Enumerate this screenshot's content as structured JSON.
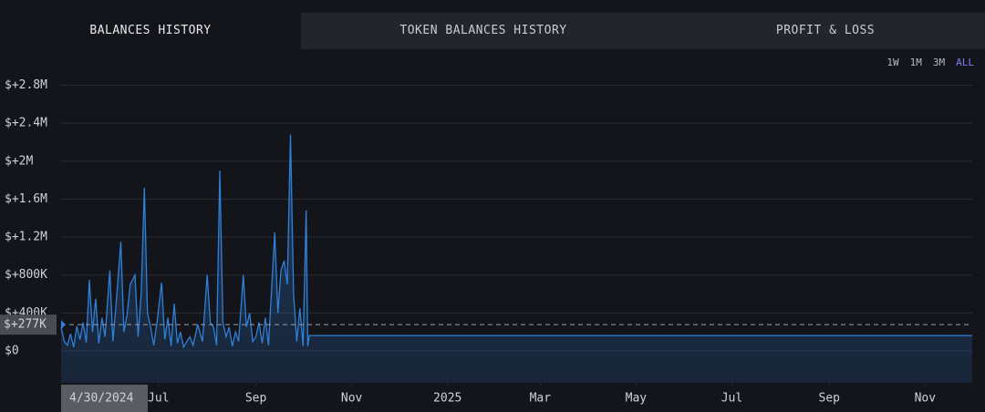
{
  "tabs": [
    {
      "label": "BALANCES HISTORY",
      "active": true
    },
    {
      "label": "TOKEN BALANCES HISTORY",
      "active": false
    },
    {
      "label": "PROFIT & LOSS",
      "active": false
    }
  ],
  "ranges": [
    {
      "label": "1W",
      "active": false
    },
    {
      "label": "1M",
      "active": false
    },
    {
      "label": "3M",
      "active": false
    },
    {
      "label": "ALL",
      "active": true
    }
  ],
  "chart_data": {
    "type": "area",
    "color": "#2f80d8",
    "grid": true,
    "x": [
      "2024-04-30",
      "2024-05-02",
      "2024-05-04",
      "2024-05-06",
      "2024-05-08",
      "2024-05-10",
      "2024-05-12",
      "2024-05-14",
      "2024-05-16",
      "2024-05-18",
      "2024-05-20",
      "2024-05-22",
      "2024-05-24",
      "2024-05-26",
      "2024-05-28",
      "2024-05-31",
      "2024-06-02",
      "2024-06-04",
      "2024-06-07",
      "2024-06-09",
      "2024-06-11",
      "2024-06-13",
      "2024-06-16",
      "2024-06-18",
      "2024-06-20",
      "2024-06-22",
      "2024-06-24",
      "2024-06-26",
      "2024-06-28",
      "2024-06-30",
      "2024-07-03",
      "2024-07-05",
      "2024-07-07",
      "2024-07-09",
      "2024-07-11",
      "2024-07-13",
      "2024-07-15",
      "2024-07-17",
      "2024-07-19",
      "2024-07-21",
      "2024-07-23",
      "2024-07-26",
      "2024-07-29",
      "2024-08-01",
      "2024-08-03",
      "2024-08-05",
      "2024-08-07",
      "2024-08-09",
      "2024-08-11",
      "2024-08-13",
      "2024-08-15",
      "2024-08-17",
      "2024-08-19",
      "2024-08-21",
      "2024-08-24",
      "2024-08-26",
      "2024-08-28",
      "2024-08-30",
      "2024-09-01",
      "2024-09-03",
      "2024-09-05",
      "2024-09-07",
      "2024-09-09",
      "2024-09-13",
      "2024-09-15",
      "2024-09-17",
      "2024-09-19",
      "2024-09-21",
      "2024-09-23",
      "2024-09-25",
      "2024-09-27",
      "2024-09-29",
      "2024-10-01",
      "2024-10-03",
      "2024-10-04",
      "2024-10-05",
      "2025-12-01"
    ],
    "values": [
      250000,
      100000,
      60000,
      180000,
      40000,
      260000,
      120000,
      300000,
      90000,
      750000,
      200000,
      550000,
      80000,
      350000,
      150000,
      850000,
      100000,
      500000,
      1150000,
      200000,
      380000,
      700000,
      800000,
      150000,
      600000,
      1720000,
      400000,
      250000,
      60000,
      300000,
      720000,
      120000,
      350000,
      50000,
      500000,
      80000,
      200000,
      40000,
      100000,
      150000,
      60000,
      280000,
      100000,
      800000,
      300000,
      250000,
      60000,
      1900000,
      300000,
      150000,
      250000,
      50000,
      200000,
      100000,
      800000,
      250000,
      400000,
      100000,
      150000,
      300000,
      80000,
      350000,
      60000,
      1250000,
      400000,
      850000,
      950000,
      700000,
      2280000,
      600000,
      100000,
      450000,
      50000,
      1480000,
      50000,
      163000,
      163000
    ],
    "xlim": [
      "2024-04-30",
      "2025-12-01"
    ],
    "xticks": [
      {
        "value": "2024-07-01",
        "label": "Jul"
      },
      {
        "value": "2024-09-01",
        "label": "Sep"
      },
      {
        "value": "2024-11-01",
        "label": "Nov"
      },
      {
        "value": "2025-01-01",
        "label": "2025"
      },
      {
        "value": "2025-03-01",
        "label": "Mar"
      },
      {
        "value": "2025-05-01",
        "label": "May"
      },
      {
        "value": "2025-07-01",
        "label": "Jul"
      },
      {
        "value": "2025-09-01",
        "label": "Sep"
      },
      {
        "value": "2025-11-01",
        "label": "Nov"
      }
    ],
    "ylim": [
      -336000,
      2930000
    ],
    "yticks": [
      {
        "value": 0,
        "label": "$0"
      },
      {
        "value": 400000,
        "label": "$+400K"
      },
      {
        "value": 800000,
        "label": "$+800K"
      },
      {
        "value": 1200000,
        "label": "$+1.2M"
      },
      {
        "value": 1600000,
        "label": "$+1.6M"
      },
      {
        "value": 2000000,
        "label": "$+2M"
      },
      {
        "value": 2400000,
        "label": "$+2.4M"
      },
      {
        "value": 2800000,
        "label": "$+2.8M"
      }
    ],
    "crosshair": {
      "value": 277000,
      "label": "$+277K",
      "x": "2024-04-30",
      "x_label": "4/30/2024"
    }
  }
}
